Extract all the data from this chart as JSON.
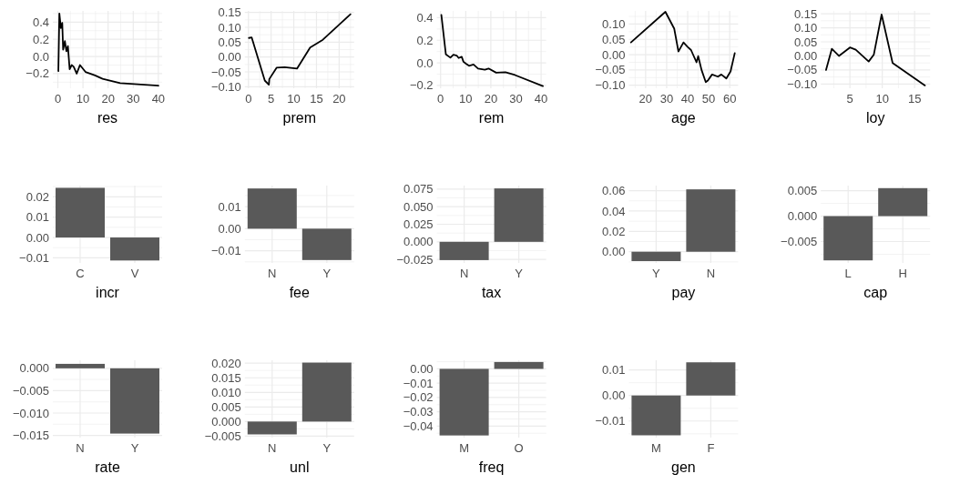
{
  "chart_data": [
    {
      "type": "line",
      "xlabel": "res",
      "color": "#000000",
      "grid": true,
      "xlim": [
        -2,
        41.5
      ],
      "ylim": [
        -0.37,
        0.53
      ],
      "xticks": [
        0,
        10,
        20,
        30,
        40
      ],
      "yticks": [
        {
          "value": -0.2,
          "label": "−0.2"
        },
        {
          "value": 0,
          "label": "0.0"
        },
        {
          "value": 0.2,
          "label": "0.2"
        },
        {
          "value": 0.4,
          "label": "0.4"
        }
      ],
      "x": [
        0.2,
        0.6,
        1.2,
        1.75,
        2.1,
        2.8,
        3.4,
        4,
        4.7,
        5.5,
        6.3,
        7.5,
        8.8,
        11,
        14.8,
        17.8,
        24.8,
        40
      ],
      "values": [
        -0.17,
        0.5,
        0.33,
        0.39,
        0.08,
        0.18,
        0.06,
        0.12,
        -0.15,
        -0.1,
        -0.12,
        -0.2,
        -0.1,
        -0.18,
        -0.22,
        -0.26,
        -0.31,
        -0.34
      ]
    },
    {
      "type": "line",
      "xlabel": "prem",
      "color": "#000000",
      "grid": true,
      "xlim": [
        -0.8,
        23.3
      ],
      "ylim": [
        -0.105,
        0.155
      ],
      "xticks": [
        0,
        5,
        10,
        15,
        20
      ],
      "yticks": [
        {
          "value": -0.1,
          "label": "−0.10"
        },
        {
          "value": -0.05,
          "label": "−0.05"
        },
        {
          "value": 0,
          "label": "0.00"
        },
        {
          "value": 0.05,
          "label": "0.05"
        },
        {
          "value": 0.1,
          "label": "0.10"
        },
        {
          "value": 0.15,
          "label": "0.15"
        }
      ],
      "x": [
        0.1,
        0.7,
        3.6,
        4.5,
        4.6,
        6.2,
        8,
        10.7,
        13.6,
        16.4,
        22.5
      ],
      "values": [
        0.064,
        0.066,
        -0.079,
        -0.093,
        -0.074,
        -0.036,
        -0.034,
        -0.039,
        0.032,
        0.058,
        0.144
      ]
    },
    {
      "type": "line",
      "xlabel": "rem",
      "color": "#000000",
      "grid": true,
      "xlim": [
        -1.5,
        42
      ],
      "ylim": [
        -0.225,
        0.46
      ],
      "xticks": [
        0,
        10,
        20,
        30,
        40
      ],
      "yticks": [
        {
          "value": -0.2,
          "label": "−0.2"
        },
        {
          "value": 0,
          "label": "0.0"
        },
        {
          "value": 0.2,
          "label": "0.2"
        },
        {
          "value": 0.4,
          "label": "0.4"
        }
      ],
      "x": [
        0.3,
        2.1,
        3.9,
        5.1,
        6.4,
        7.2,
        8.4,
        9.1,
        10.1,
        11.3,
        13.1,
        14.9,
        17.6,
        19.1,
        22.1,
        25.8,
        29.6,
        40.7
      ],
      "values": [
        0.425,
        0.075,
        0.046,
        0.072,
        0.065,
        0.043,
        0.054,
        0.01,
        -0.008,
        -0.026,
        -0.015,
        -0.051,
        -0.06,
        -0.05,
        -0.087,
        -0.083,
        -0.108,
        -0.206
      ]
    },
    {
      "type": "line",
      "xlabel": "age",
      "color": "#000000",
      "grid": true,
      "xlim": [
        12,
        64
      ],
      "ylim": [
        -0.11,
        0.143
      ],
      "xticks": [
        20,
        30,
        40,
        50,
        60
      ],
      "yticks": [
        {
          "value": -0.1,
          "label": "−0.10"
        },
        {
          "value": -0.05,
          "label": "−0.05"
        },
        {
          "value": 0,
          "label": "0.00"
        },
        {
          "value": 0.05,
          "label": "0.05"
        },
        {
          "value": 0.1,
          "label": "0.10"
        }
      ],
      "x": [
        13,
        29.4,
        33.6,
        35.6,
        38,
        40,
        41.6,
        44.2,
        45,
        46.6,
        48.6,
        49.6,
        51.6,
        54.4,
        56,
        58.4,
        60.4,
        62.4
      ],
      "values": [
        0.04,
        0.14,
        0.085,
        0.01,
        0.04,
        0.025,
        0.015,
        -0.025,
        -0.005,
        -0.05,
        -0.09,
        -0.085,
        -0.065,
        -0.072,
        -0.065,
        -0.078,
        -0.055,
        0.005
      ]
    },
    {
      "type": "line",
      "xlabel": "loy",
      "color": "#000000",
      "grid": true,
      "xlim": [
        0.5,
        17.4
      ],
      "ylim": [
        -0.115,
        0.16
      ],
      "xticks": [
        5,
        10,
        15
      ],
      "yticks": [
        {
          "value": -0.1,
          "label": "−0.10"
        },
        {
          "value": -0.05,
          "label": "−0.05"
        },
        {
          "value": 0,
          "label": "0.00"
        },
        {
          "value": 0.05,
          "label": "0.05"
        },
        {
          "value": 0.1,
          "label": "0.10"
        },
        {
          "value": 0.15,
          "label": "0.15"
        }
      ],
      "x": [
        1.3,
        2.2,
        3.3,
        5,
        5.9,
        7.9,
        8.7,
        9.9,
        11.6,
        16.6
      ],
      "values": [
        -0.05,
        0.025,
        0,
        0.03,
        0.022,
        -0.02,
        0.005,
        0.147,
        -0.025,
        -0.105
      ]
    },
    {
      "type": "bar",
      "xlabel": "incr",
      "color": "#595959",
      "grid": true,
      "categories": [
        "C",
        "V"
      ],
      "values": [
        0.0244,
        -0.0113
      ],
      "ylim": [
        -0.0125,
        0.0255
      ],
      "yticks": [
        {
          "value": -0.01,
          "label": "−0.01"
        },
        {
          "value": 0,
          "label": "0.00"
        },
        {
          "value": 0.01,
          "label": "0.01"
        },
        {
          "value": 0.02,
          "label": "0.02"
        }
      ]
    },
    {
      "type": "bar",
      "xlabel": "fee",
      "color": "#595959",
      "grid": true,
      "categories": [
        "N",
        "Y"
      ],
      "values": [
        0.0182,
        -0.0142
      ],
      "ylim": [
        -0.0155,
        0.0195
      ],
      "yticks": [
        {
          "value": -0.01,
          "label": "−0.01"
        },
        {
          "value": 0,
          "label": "0.00"
        },
        {
          "value": 0.01,
          "label": "0.01"
        }
      ]
    },
    {
      "type": "bar",
      "xlabel": "tax",
      "color": "#595959",
      "grid": true,
      "categories": [
        "N",
        "Y"
      ],
      "values": [
        -0.026,
        0.076
      ],
      "ylim": [
        -0.03,
        0.08
      ],
      "yticks": [
        {
          "value": -0.025,
          "label": "−0.025"
        },
        {
          "value": 0,
          "label": "0.000"
        },
        {
          "value": 0.025,
          "label": "0.025"
        },
        {
          "value": 0.05,
          "label": "0.050"
        },
        {
          "value": 0.075,
          "label": "0.075"
        }
      ]
    },
    {
      "type": "bar",
      "xlabel": "pay",
      "color": "#595959",
      "grid": true,
      "categories": [
        "Y",
        "N"
      ],
      "values": [
        -0.0092,
        0.0613
      ],
      "ylim": [
        -0.011,
        0.065
      ],
      "yticks": [
        {
          "value": 0,
          "label": "0.00"
        },
        {
          "value": 0.02,
          "label": "0.02"
        },
        {
          "value": 0.04,
          "label": "0.04"
        },
        {
          "value": 0.06,
          "label": "0.06"
        }
      ]
    },
    {
      "type": "bar",
      "xlabel": "cap",
      "color": "#595959",
      "grid": true,
      "categories": [
        "L",
        "H"
      ],
      "values": [
        -0.0087,
        0.0055
      ],
      "ylim": [
        -0.0092,
        0.006
      ],
      "yticks": [
        {
          "value": -0.005,
          "label": "−0.005"
        },
        {
          "value": 0,
          "label": "0.000"
        },
        {
          "value": 0.005,
          "label": "0.005"
        }
      ]
    },
    {
      "type": "bar",
      "xlabel": "rate",
      "color": "#595959",
      "grid": true,
      "categories": [
        "N",
        "Y"
      ],
      "values": [
        0.001,
        -0.0146
      ],
      "ylim": [
        -0.0155,
        0.0018
      ],
      "yticks": [
        {
          "value": -0.015,
          "label": "−0.015"
        },
        {
          "value": -0.01,
          "label": "−0.010"
        },
        {
          "value": -0.005,
          "label": "−0.005"
        },
        {
          "value": 0,
          "label": "0.000"
        }
      ]
    },
    {
      "type": "bar",
      "xlabel": "unl",
      "color": "#595959",
      "grid": true,
      "categories": [
        "N",
        "Y"
      ],
      "values": [
        -0.0044,
        0.0202
      ],
      "ylim": [
        -0.0055,
        0.021
      ],
      "yticks": [
        {
          "value": -0.005,
          "label": "−0.005"
        },
        {
          "value": 0,
          "label": "0.000"
        },
        {
          "value": 0.005,
          "label": "0.005"
        },
        {
          "value": 0.01,
          "label": "0.010"
        },
        {
          "value": 0.015,
          "label": "0.015"
        },
        {
          "value": 0.02,
          "label": "0.020"
        }
      ]
    },
    {
      "type": "bar",
      "xlabel": "freq",
      "color": "#595959",
      "grid": true,
      "categories": [
        "M",
        "O"
      ],
      "values": [
        -0.0465,
        0.0048
      ],
      "ylim": [
        -0.048,
        0.006
      ],
      "yticks": [
        {
          "value": -0.04,
          "label": "−0.04"
        },
        {
          "value": -0.03,
          "label": "−0.03"
        },
        {
          "value": -0.02,
          "label": "−0.02"
        },
        {
          "value": -0.01,
          "label": "−0.01"
        },
        {
          "value": 0,
          "label": "0.00"
        }
      ]
    },
    {
      "type": "bar",
      "xlabel": "gen",
      "color": "#595959",
      "grid": true,
      "categories": [
        "M",
        "F"
      ],
      "values": [
        -0.0156,
        0.013
      ],
      "ylim": [
        -0.0165,
        0.0138
      ],
      "yticks": [
        {
          "value": -0.01,
          "label": "−0.01"
        },
        {
          "value": 0,
          "label": "0.00"
        },
        {
          "value": 0.01,
          "label": "0.01"
        }
      ]
    }
  ]
}
